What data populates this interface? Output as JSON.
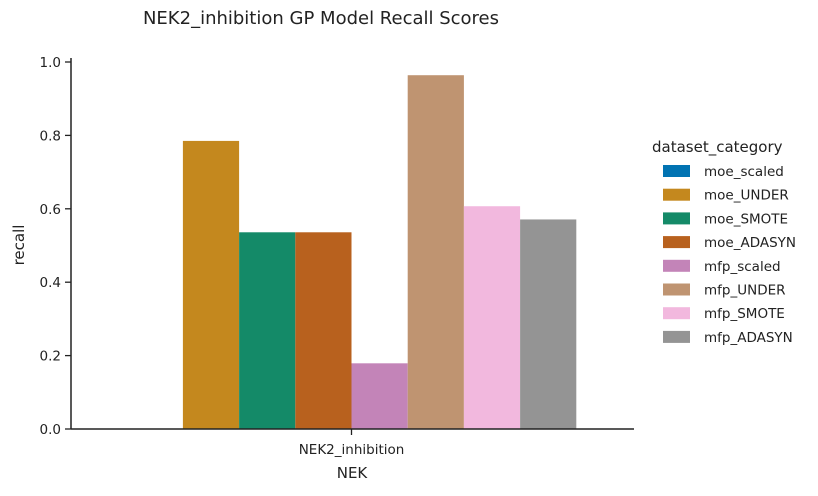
{
  "chart_data": {
    "type": "bar",
    "title": "NEK2_inhibition GP Model Recall Scores",
    "xlabel": "NEK",
    "ylabel": "recall",
    "categories": [
      "NEK2_inhibition"
    ],
    "ylim": [
      0,
      1.0
    ],
    "yticks": [
      "0.0",
      "0.2",
      "0.4",
      "0.6",
      "0.8",
      "1.0"
    ],
    "grid": false,
    "legend_placement": "right",
    "legend_title": "dataset_category",
    "series": [
      {
        "name": "moe_scaled",
        "color": "#0173b2",
        "values": [
          0.0
        ]
      },
      {
        "name": "moe_UNDER",
        "color": "#c4881e",
        "values": [
          0.785
        ]
      },
      {
        "name": "moe_SMOTE",
        "color": "#148a68",
        "values": [
          0.536
        ]
      },
      {
        "name": "moe_ADASYN",
        "color": "#b8611e",
        "values": [
          0.536
        ]
      },
      {
        "name": "mfp_scaled",
        "color": "#c384b8",
        "values": [
          0.179
        ]
      },
      {
        "name": "mfp_UNDER",
        "color": "#bf9471",
        "values": [
          0.964
        ]
      },
      {
        "name": "mfp_SMOTE",
        "color": "#f2b8de",
        "values": [
          0.607
        ]
      },
      {
        "name": "mfp_ADASYN",
        "color": "#949494",
        "values": [
          0.571
        ]
      }
    ]
  }
}
